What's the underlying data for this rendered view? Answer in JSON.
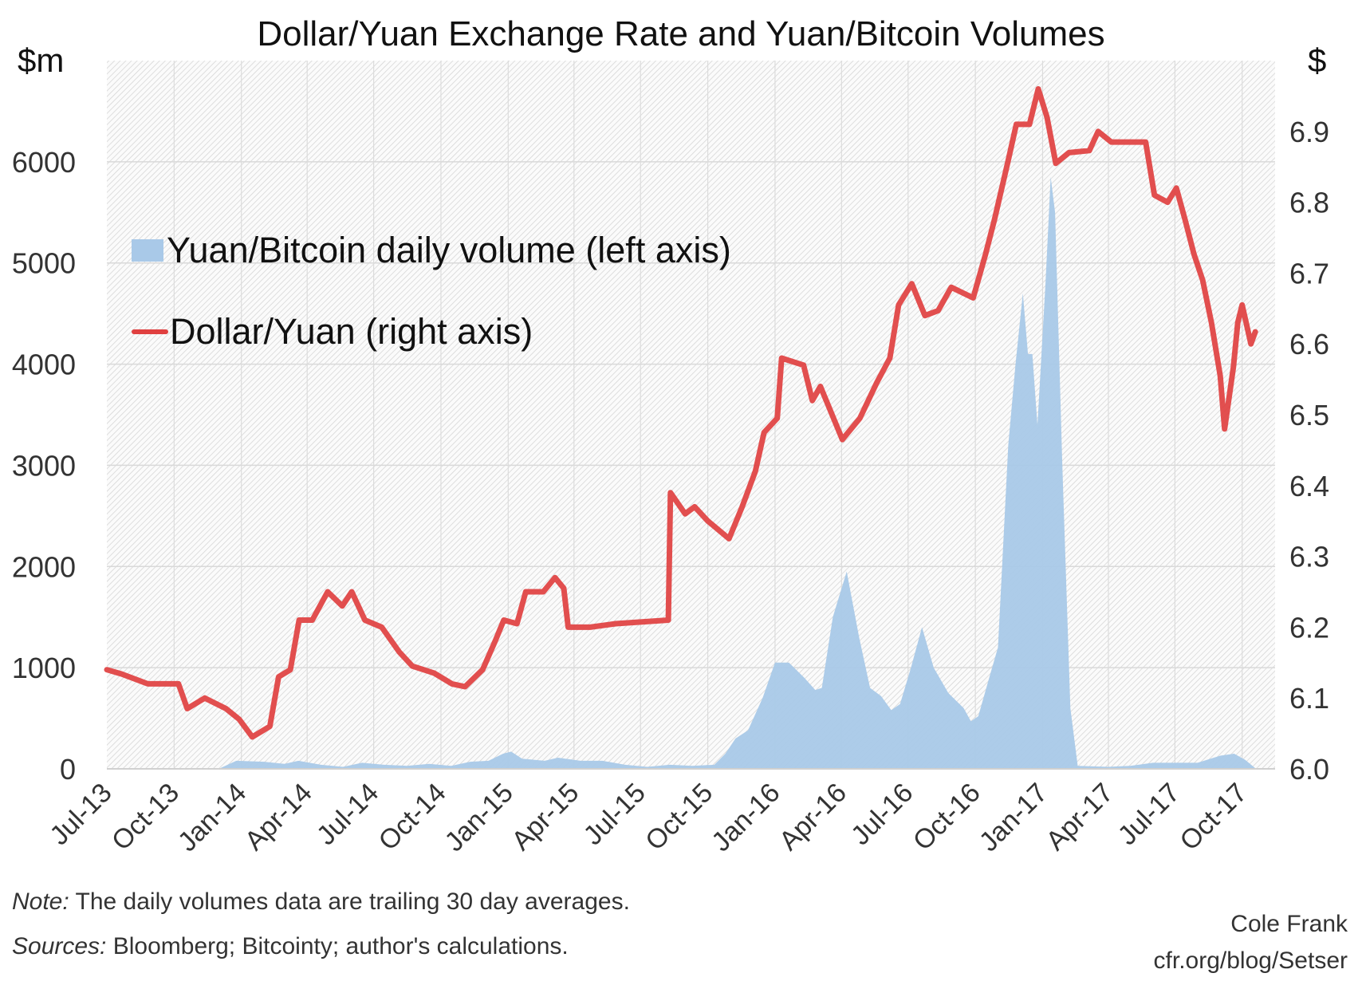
{
  "chart_data": {
    "type": "area+line",
    "title": "Dollar/Yuan Exchange Rate and Yuan/Bitcoin Volumes",
    "y_left_unit": "$m",
    "y_right_unit": "$",
    "y_left_lim": [
      0,
      7000
    ],
    "y_left_ticks": [
      0,
      1000,
      2000,
      3000,
      4000,
      5000,
      6000
    ],
    "y_right_lim": [
      6.0,
      7.0
    ],
    "y_right_ticks": [
      "6.0",
      "6.1",
      "6.2",
      "6.3",
      "6.4",
      "6.5",
      "6.6",
      "6.7",
      "6.8",
      "6.9"
    ],
    "x_lim": [
      "2013-07-01",
      "2017-11-15"
    ],
    "x_ticks": [
      {
        "label": "Jul-13",
        "date": "2013-07-01"
      },
      {
        "label": "Oct-13",
        "date": "2013-10-01"
      },
      {
        "label": "Jan-14",
        "date": "2014-01-01"
      },
      {
        "label": "Apr-14",
        "date": "2014-04-01"
      },
      {
        "label": "Jul-14",
        "date": "2014-07-01"
      },
      {
        "label": "Oct-14",
        "date": "2014-10-01"
      },
      {
        "label": "Jan-15",
        "date": "2015-01-01"
      },
      {
        "label": "Apr-15",
        "date": "2015-04-01"
      },
      {
        "label": "Jul-15",
        "date": "2015-07-01"
      },
      {
        "label": "Oct-15",
        "date": "2015-10-01"
      },
      {
        "label": "Jan-16",
        "date": "2016-01-01"
      },
      {
        "label": "Apr-16",
        "date": "2016-04-01"
      },
      {
        "label": "Jul-16",
        "date": "2016-07-01"
      },
      {
        "label": "Oct-16",
        "date": "2016-10-01"
      },
      {
        "label": "Jan-17",
        "date": "2017-01-01"
      },
      {
        "label": "Apr-17",
        "date": "2017-04-01"
      },
      {
        "label": "Jul-17",
        "date": "2017-07-01"
      },
      {
        "label": "Oct-17",
        "date": "2017-10-01"
      }
    ],
    "grid": "left-axis horizontal and quarterly vertical gridlines on hatched background",
    "legend_placement": "upper-left",
    "series": [
      {
        "name": "Yuan/Bitcoin daily volume (left axis)",
        "type": "area",
        "axis": "left",
        "color": "#a9c9e8",
        "points": [
          [
            "2013-07-01",
            0
          ],
          [
            "2013-12-01",
            0
          ],
          [
            "2013-12-25",
            80
          ],
          [
            "2014-02-01",
            70
          ],
          [
            "2014-03-01",
            50
          ],
          [
            "2014-03-20",
            80
          ],
          [
            "2014-04-20",
            40
          ],
          [
            "2014-05-20",
            20
          ],
          [
            "2014-06-15",
            60
          ],
          [
            "2014-07-15",
            40
          ],
          [
            "2014-08-15",
            30
          ],
          [
            "2014-09-15",
            50
          ],
          [
            "2014-10-15",
            30
          ],
          [
            "2014-11-10",
            70
          ],
          [
            "2014-12-05",
            80
          ],
          [
            "2014-12-25",
            150
          ],
          [
            "2015-01-05",
            170
          ],
          [
            "2015-01-20",
            100
          ],
          [
            "2015-02-20",
            80
          ],
          [
            "2015-03-10",
            110
          ],
          [
            "2015-04-10",
            80
          ],
          [
            "2015-05-10",
            80
          ],
          [
            "2015-06-10",
            40
          ],
          [
            "2015-07-10",
            20
          ],
          [
            "2015-08-10",
            40
          ],
          [
            "2015-09-10",
            30
          ],
          [
            "2015-10-10",
            40
          ],
          [
            "2015-10-25",
            150
          ],
          [
            "2015-11-08",
            300
          ],
          [
            "2015-11-25",
            380
          ],
          [
            "2015-12-15",
            700
          ],
          [
            "2016-01-01",
            1050
          ],
          [
            "2016-01-20",
            1050
          ],
          [
            "2016-02-10",
            900
          ],
          [
            "2016-02-25",
            780
          ],
          [
            "2016-03-05",
            800
          ],
          [
            "2016-03-20",
            1500
          ],
          [
            "2016-04-08",
            1950
          ],
          [
            "2016-04-25",
            1300
          ],
          [
            "2016-05-10",
            800
          ],
          [
            "2016-05-25",
            720
          ],
          [
            "2016-06-08",
            580
          ],
          [
            "2016-06-20",
            640
          ],
          [
            "2016-07-05",
            1000
          ],
          [
            "2016-07-20",
            1400
          ],
          [
            "2016-08-05",
            1000
          ],
          [
            "2016-08-25",
            750
          ],
          [
            "2016-09-15",
            600
          ],
          [
            "2016-09-25",
            470
          ],
          [
            "2016-10-05",
            520
          ],
          [
            "2016-10-20",
            900
          ],
          [
            "2016-11-01",
            1200
          ],
          [
            "2016-11-15",
            3200
          ],
          [
            "2016-11-25",
            4000
          ],
          [
            "2016-12-05",
            4700
          ],
          [
            "2016-12-12",
            4100
          ],
          [
            "2016-12-18",
            4100
          ],
          [
            "2016-12-25",
            3400
          ],
          [
            "2017-01-05",
            4800
          ],
          [
            "2017-01-12",
            5850
          ],
          [
            "2017-01-18",
            5500
          ],
          [
            "2017-01-28",
            3000
          ],
          [
            "2017-02-08",
            600
          ],
          [
            "2017-02-18",
            30
          ],
          [
            "2017-04-01",
            20
          ],
          [
            "2017-05-01",
            30
          ],
          [
            "2017-06-01",
            60
          ],
          [
            "2017-07-01",
            60
          ],
          [
            "2017-08-01",
            60
          ],
          [
            "2017-09-01",
            130
          ],
          [
            "2017-09-20",
            150
          ],
          [
            "2017-10-05",
            90
          ],
          [
            "2017-10-20",
            0
          ]
        ]
      },
      {
        "name": "Dollar/Yuan (right axis)",
        "type": "line",
        "axis": "right",
        "color": "#e04040",
        "points": [
          [
            "2013-07-01",
            6.14
          ],
          [
            "2013-07-21",
            6.134
          ],
          [
            "2013-08-26",
            6.12
          ],
          [
            "2013-10-07",
            6.12
          ],
          [
            "2013-10-19",
            6.085
          ],
          [
            "2013-11-12",
            6.1
          ],
          [
            "2013-12-11",
            6.085
          ],
          [
            "2013-12-29",
            6.07
          ],
          [
            "2014-01-16",
            6.045
          ],
          [
            "2014-02-09",
            6.06
          ],
          [
            "2014-02-21",
            6.13
          ],
          [
            "2014-03-09",
            6.14
          ],
          [
            "2014-03-21",
            6.21
          ],
          [
            "2014-04-08",
            6.21
          ],
          [
            "2014-04-29",
            6.25
          ],
          [
            "2014-05-19",
            6.23
          ],
          [
            "2014-06-01",
            6.25
          ],
          [
            "2014-06-19",
            6.21
          ],
          [
            "2014-07-12",
            6.2
          ],
          [
            "2014-08-05",
            6.165
          ],
          [
            "2014-08-23",
            6.145
          ],
          [
            "2014-09-22",
            6.135
          ],
          [
            "2014-10-16",
            6.12
          ],
          [
            "2014-11-03",
            6.116
          ],
          [
            "2014-11-27",
            6.14
          ],
          [
            "2014-12-14",
            6.18
          ],
          [
            "2014-12-26",
            6.21
          ],
          [
            "2015-01-13",
            6.205
          ],
          [
            "2015-01-25",
            6.25
          ],
          [
            "2015-02-18",
            6.25
          ],
          [
            "2015-03-06",
            6.27
          ],
          [
            "2015-03-18",
            6.255
          ],
          [
            "2015-03-24",
            6.2
          ],
          [
            "2015-04-23",
            6.2
          ],
          [
            "2015-05-28",
            6.205
          ],
          [
            "2015-08-08",
            6.21
          ],
          [
            "2015-08-11",
            6.39
          ],
          [
            "2015-08-31",
            6.36
          ],
          [
            "2015-09-13",
            6.37
          ],
          [
            "2015-10-01",
            6.35
          ],
          [
            "2015-10-30",
            6.325
          ],
          [
            "2015-11-17",
            6.37
          ],
          [
            "2015-12-05",
            6.42
          ],
          [
            "2015-12-17",
            6.475
          ],
          [
            "2016-01-04",
            6.495
          ],
          [
            "2016-01-10",
            6.58
          ],
          [
            "2016-02-09",
            6.57
          ],
          [
            "2016-02-21",
            6.52
          ],
          [
            "2016-03-03",
            6.54
          ],
          [
            "2016-03-21",
            6.495
          ],
          [
            "2016-04-02",
            6.465
          ],
          [
            "2016-04-26",
            6.495
          ],
          [
            "2016-05-19",
            6.545
          ],
          [
            "2016-06-06",
            6.58
          ],
          [
            "2016-06-18",
            6.655
          ],
          [
            "2016-07-06",
            6.685
          ],
          [
            "2016-07-24",
            6.64
          ],
          [
            "2016-08-11",
            6.647
          ],
          [
            "2016-08-29",
            6.68
          ],
          [
            "2016-09-28",
            6.665
          ],
          [
            "2016-10-15",
            6.727
          ],
          [
            "2016-10-27",
            6.775
          ],
          [
            "2016-11-14",
            6.855
          ],
          [
            "2016-11-26",
            6.91
          ],
          [
            "2016-12-14",
            6.91
          ],
          [
            "2016-12-26",
            6.96
          ],
          [
            "2017-01-07",
            6.92
          ],
          [
            "2017-01-19",
            6.855
          ],
          [
            "2017-02-06",
            6.87
          ],
          [
            "2017-03-06",
            6.873
          ],
          [
            "2017-03-18",
            6.9
          ],
          [
            "2017-04-05",
            6.885
          ],
          [
            "2017-04-29",
            6.885
          ],
          [
            "2017-05-22",
            6.885
          ],
          [
            "2017-06-03",
            6.81
          ],
          [
            "2017-06-21",
            6.8
          ],
          [
            "2017-07-03",
            6.82
          ],
          [
            "2017-07-15",
            6.775
          ],
          [
            "2017-07-27",
            6.727
          ],
          [
            "2017-08-08",
            6.69
          ],
          [
            "2017-08-20",
            6.63
          ],
          [
            "2017-09-01",
            6.555
          ],
          [
            "2017-09-07",
            6.48
          ],
          [
            "2017-09-19",
            6.567
          ],
          [
            "2017-09-25",
            6.63
          ],
          [
            "2017-10-01",
            6.655
          ],
          [
            "2017-10-13",
            6.6
          ],
          [
            "2017-10-19",
            6.617
          ]
        ]
      }
    ]
  },
  "notes": {
    "note_label": "Note:",
    "note_text": " The daily volumes  data are trailing 30 day averages.",
    "sources_label": "Sources:",
    "sources_text": " Bloomberg; Bitcointy; author's calculations."
  },
  "credit": {
    "author": "Cole Frank",
    "site": "cfr.org/blog/Setser"
  }
}
